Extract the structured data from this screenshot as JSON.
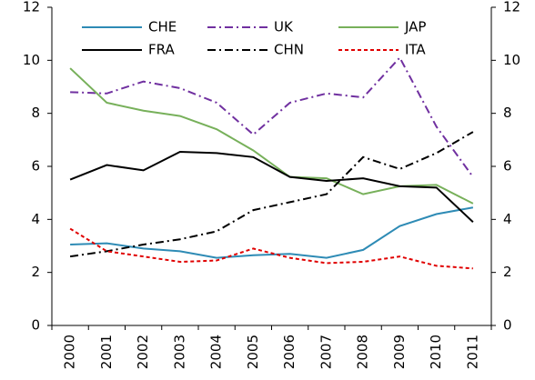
{
  "chart_data": {
    "type": "line",
    "categories": [
      "2000",
      "2001",
      "2002",
      "2003",
      "2004",
      "2005",
      "2006",
      "2007",
      "2008",
      "2009",
      "2010",
      "2011"
    ],
    "series": [
      {
        "name": "CHE",
        "color": "#2e8bb5",
        "dash": "solid",
        "values": [
          3.05,
          3.1,
          2.9,
          2.8,
          2.55,
          2.65,
          2.7,
          2.55,
          2.85,
          3.75,
          4.2,
          4.45
        ]
      },
      {
        "name": "UK",
        "color": "#7030a0",
        "dash": "dashdot",
        "values": [
          8.8,
          8.75,
          9.2,
          8.95,
          8.4,
          7.2,
          8.4,
          8.75,
          8.6,
          10.1,
          7.5,
          5.6
        ]
      },
      {
        "name": "JAP",
        "color": "#77b05a",
        "dash": "solid",
        "values": [
          9.7,
          8.4,
          8.1,
          7.9,
          7.4,
          6.6,
          5.6,
          5.55,
          4.95,
          5.25,
          5.3,
          4.6
        ]
      },
      {
        "name": "FRA",
        "color": "#000000",
        "dash": "solid",
        "values": [
          5.5,
          6.05,
          5.85,
          6.55,
          6.5,
          6.35,
          5.6,
          5.45,
          5.55,
          5.25,
          5.2,
          3.9
        ]
      },
      {
        "name": "CHN",
        "color": "#000000",
        "dash": "dashdot",
        "values": [
          2.6,
          2.8,
          3.05,
          3.25,
          3.55,
          4.35,
          4.65,
          4.95,
          6.35,
          5.9,
          6.5,
          7.3
        ]
      },
      {
        "name": "ITA",
        "color": "#e00000",
        "dash": "dashed",
        "values": [
          3.65,
          2.8,
          2.6,
          2.4,
          2.45,
          2.9,
          2.55,
          2.35,
          2.4,
          2.6,
          2.25,
          2.15
        ]
      }
    ],
    "ylim": [
      0,
      12
    ],
    "yticks": [
      0,
      2,
      4,
      6,
      8,
      10,
      12
    ],
    "y2lim": [
      0,
      12
    ],
    "y2ticks": [
      0,
      2,
      4,
      6,
      8,
      10,
      12
    ],
    "legend": "upper center",
    "grid": false
  }
}
